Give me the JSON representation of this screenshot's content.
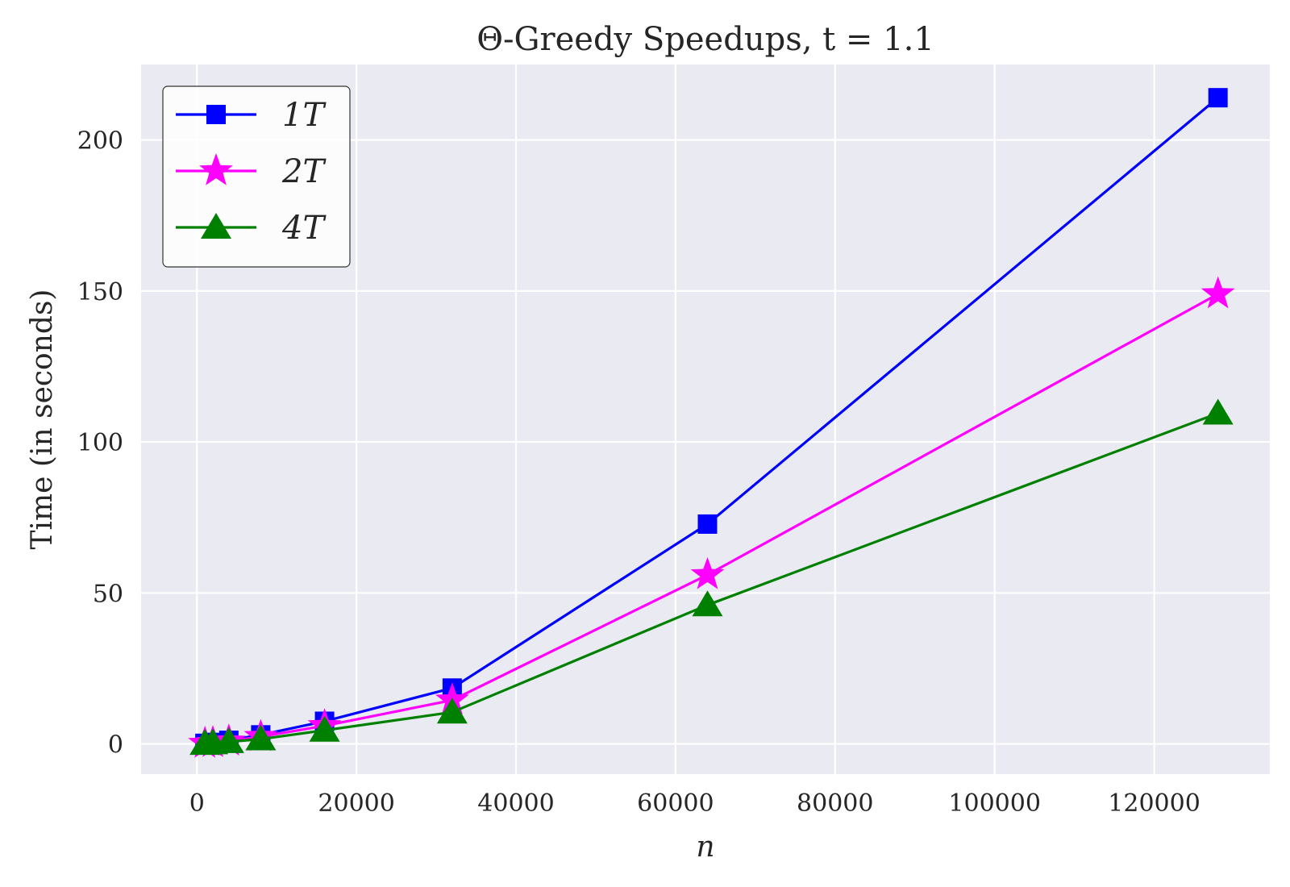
{
  "chart_data": {
    "type": "line",
    "title": "Θ-Greedy Speedups, t = 1.1",
    "xlabel": "n",
    "ylabel": "Time (in seconds)",
    "xlim": [
      -7000,
      134500
    ],
    "ylim": [
      -10,
      225
    ],
    "xticks": [
      0,
      20000,
      40000,
      60000,
      80000,
      100000,
      120000
    ],
    "xtick_labels": [
      "0",
      "20000",
      "40000",
      "60000",
      "80000",
      "100000",
      "120000"
    ],
    "yticks": [
      0,
      50,
      100,
      150,
      200
    ],
    "ytick_labels": [
      "0",
      "50",
      "100",
      "150",
      "200"
    ],
    "grid": true,
    "legend_position": "top-left",
    "x": [
      1000,
      2000,
      4000,
      8000,
      16000,
      32000,
      64000,
      128000
    ],
    "series": [
      {
        "name": "1T",
        "color": "#0000ff",
        "marker": "square",
        "values": [
          0.2,
          0.5,
          1.2,
          3.0,
          7.5,
          18.5,
          72.8,
          214.0
        ]
      },
      {
        "name": "2T",
        "color": "#ff00ff",
        "marker": "star",
        "values": [
          0.15,
          0.4,
          0.9,
          2.4,
          6.0,
          14.5,
          56.0,
          149.0
        ]
      },
      {
        "name": "4T",
        "color": "#008000",
        "marker": "triangle",
        "values": [
          0.1,
          0.3,
          0.7,
          1.6,
          4.5,
          10.5,
          46.0,
          109.5
        ]
      }
    ]
  }
}
